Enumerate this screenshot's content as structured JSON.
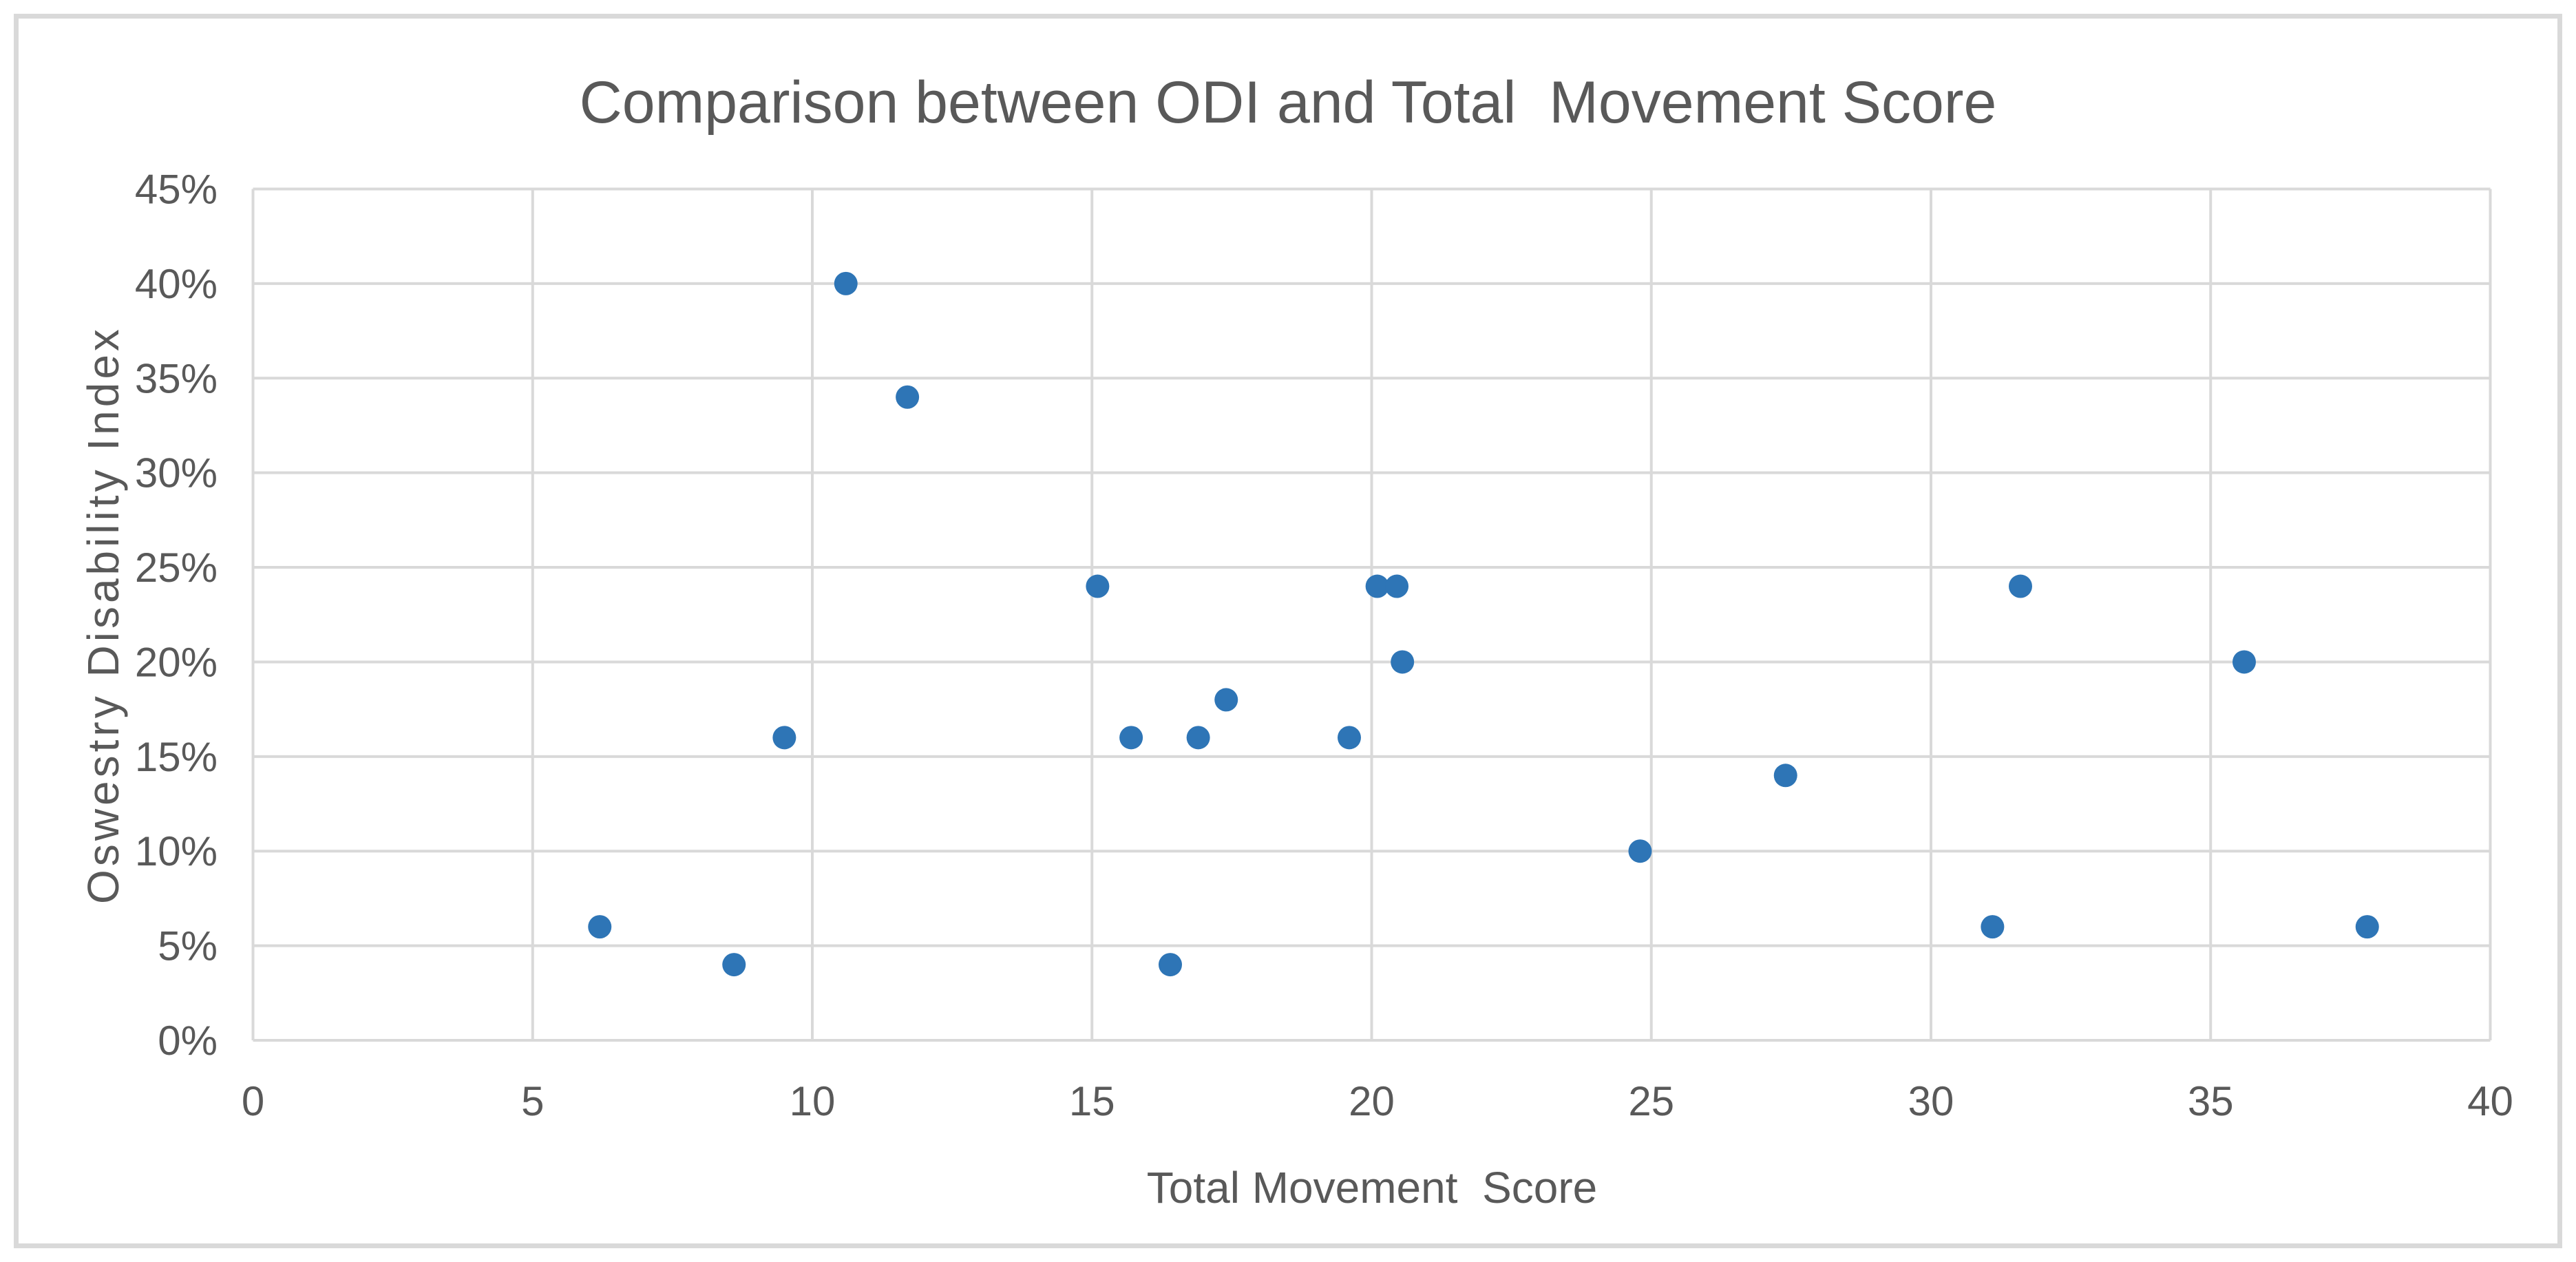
{
  "chart": {
    "title": "Comparison between ODI and Total  Movement Score"
  },
  "chart_data": {
    "type": "scatter",
    "title": "Comparison between ODI and Total  Movement Score",
    "xlabel": "Total Movement  Score",
    "ylabel": "Oswestry Disability Index",
    "xlim": [
      0,
      40
    ],
    "ylim_pct": [
      0,
      45
    ],
    "x_ticks": [
      0,
      5,
      10,
      15,
      20,
      25,
      30,
      35,
      40
    ],
    "x_tick_labels": [
      "0",
      "5",
      "10",
      "15",
      "20",
      "25",
      "30",
      "35",
      "40"
    ],
    "y_ticks_pct": [
      0,
      5,
      10,
      15,
      20,
      25,
      30,
      35,
      40,
      45
    ],
    "y_tick_labels": [
      "0%",
      "5%",
      "10%",
      "15%",
      "20%",
      "25%",
      "30%",
      "35%",
      "40%",
      "45%"
    ],
    "grid": true,
    "legend": false,
    "points": [
      [
        6.2,
        6
      ],
      [
        8.6,
        4
      ],
      [
        9.5,
        16
      ],
      [
        10.6,
        40
      ],
      [
        11.7,
        34
      ],
      [
        15.1,
        24
      ],
      [
        15.7,
        16
      ],
      [
        16.4,
        4
      ],
      [
        16.9,
        16
      ],
      [
        17.4,
        18
      ],
      [
        19.6,
        16
      ],
      [
        20.1,
        24
      ],
      [
        20.45,
        24
      ],
      [
        20.55,
        20
      ],
      [
        24.8,
        10
      ],
      [
        27.4,
        14
      ],
      [
        31.1,
        6
      ],
      [
        31.6,
        24
      ],
      [
        35.6,
        20
      ],
      [
        37.8,
        6
      ]
    ]
  },
  "colors": {
    "marker": "#2E75B6",
    "grid": "#D9D9D9",
    "text": "#595959",
    "frame_border": "#D9D9D9",
    "background": "#FFFFFF"
  }
}
